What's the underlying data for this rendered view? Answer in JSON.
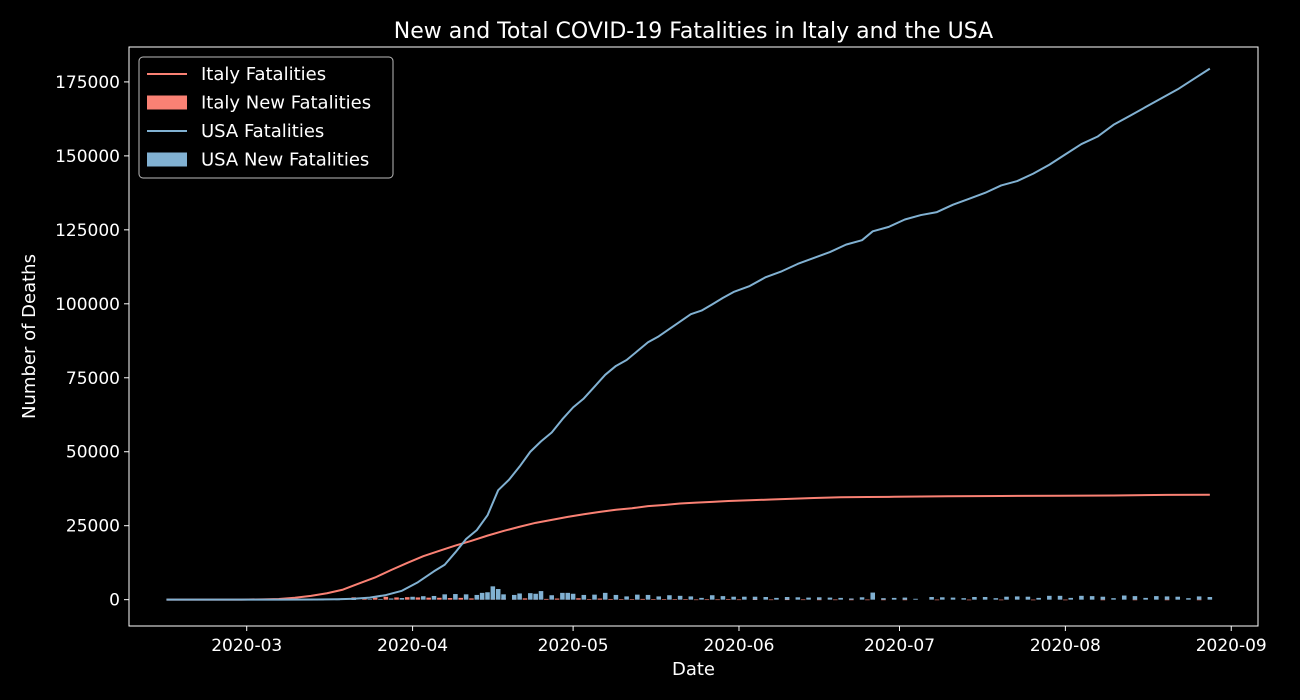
{
  "chart_data": {
    "type": "line",
    "title": "New and Total COVID-19 Fatalities in Italy and the USA",
    "xlabel": "Date",
    "ylabel": "Number of Deaths",
    "xlim": [
      "2020-02-08",
      "2020-09-06"
    ],
    "ylim": [
      -8900,
      186800
    ],
    "x_ticks": [
      "2020-03",
      "2020-04",
      "2020-05",
      "2020-06",
      "2020-07",
      "2020-08",
      "2020-09"
    ],
    "y_ticks": [
      0,
      25000,
      50000,
      75000,
      100000,
      125000,
      150000,
      175000
    ],
    "legend_position": "top-left",
    "grid": false,
    "colors": {
      "italy": "#fa8174",
      "usa": "#81b1d2",
      "background": "#000000",
      "foreground": "#ffffff"
    },
    "series": [
      {
        "name": "Italy Fatalities",
        "kind": "line",
        "color": "#fa8174",
        "points": [
          [
            "2020-02-15",
            0
          ],
          [
            "2020-02-22",
            2
          ],
          [
            "2020-02-29",
            29
          ],
          [
            "2020-03-04",
            107
          ],
          [
            "2020-03-07",
            233
          ],
          [
            "2020-03-10",
            631
          ],
          [
            "2020-03-13",
            1266
          ],
          [
            "2020-03-16",
            2158
          ],
          [
            "2020-03-19",
            3405
          ],
          [
            "2020-03-22",
            5476
          ],
          [
            "2020-03-25",
            7503
          ],
          [
            "2020-03-28",
            10023
          ],
          [
            "2020-03-31",
            12428
          ],
          [
            "2020-04-03",
            14681
          ],
          [
            "2020-04-06",
            16523
          ],
          [
            "2020-04-09",
            18279
          ],
          [
            "2020-04-12",
            19899
          ],
          [
            "2020-04-15",
            21645
          ],
          [
            "2020-04-18",
            23227
          ],
          [
            "2020-04-21",
            24648
          ],
          [
            "2020-04-24",
            25969
          ],
          [
            "2020-04-27",
            26977
          ],
          [
            "2020-04-30",
            27967
          ],
          [
            "2020-05-03",
            28884
          ],
          [
            "2020-05-06",
            29684
          ],
          [
            "2020-05-09",
            30395
          ],
          [
            "2020-05-12",
            30911
          ],
          [
            "2020-05-15",
            31610
          ],
          [
            "2020-05-18",
            32007
          ],
          [
            "2020-05-21",
            32486
          ],
          [
            "2020-05-24",
            32785
          ],
          [
            "2020-05-27",
            33072
          ],
          [
            "2020-05-30",
            33340
          ],
          [
            "2020-06-03",
            33601
          ],
          [
            "2020-06-07",
            33846
          ],
          [
            "2020-06-11",
            34114
          ],
          [
            "2020-06-15",
            34371
          ],
          [
            "2020-06-20",
            34634
          ],
          [
            "2020-06-25",
            34708
          ],
          [
            "2020-06-30",
            34767
          ],
          [
            "2020-07-10",
            34938
          ],
          [
            "2020-07-20",
            35058
          ],
          [
            "2020-07-31",
            35141
          ],
          [
            "2020-08-10",
            35209
          ],
          [
            "2020-08-20",
            35418
          ],
          [
            "2020-08-28",
            35472
          ]
        ]
      },
      {
        "name": "Italy New Fatalities",
        "kind": "bar",
        "color": "#fa8174",
        "points": [
          [
            "2020-03-03",
            20
          ],
          [
            "2020-03-05",
            40
          ],
          [
            "2020-03-07",
            40
          ],
          [
            "2020-03-09",
            100
          ],
          [
            "2020-03-11",
            190
          ],
          [
            "2020-03-13",
            250
          ],
          [
            "2020-03-15",
            370
          ],
          [
            "2020-03-17",
            350
          ],
          [
            "2020-03-19",
            430
          ],
          [
            "2020-03-21",
            790
          ],
          [
            "2020-03-23",
            600
          ],
          [
            "2020-03-25",
            680
          ],
          [
            "2020-03-27",
            970
          ],
          [
            "2020-03-29",
            760
          ],
          [
            "2020-03-31",
            840
          ],
          [
            "2020-04-02",
            760
          ],
          [
            "2020-04-04",
            680
          ],
          [
            "2020-04-06",
            640
          ],
          [
            "2020-04-08",
            540
          ],
          [
            "2020-04-10",
            610
          ],
          [
            "2020-04-12",
            430
          ],
          [
            "2020-04-14",
            600
          ],
          [
            "2020-04-16",
            520
          ],
          [
            "2020-04-18",
            480
          ],
          [
            "2020-04-20",
            450
          ],
          [
            "2020-04-22",
            440
          ],
          [
            "2020-04-24",
            420
          ],
          [
            "2020-04-26",
            260
          ],
          [
            "2020-04-28",
            380
          ],
          [
            "2020-04-30",
            280
          ],
          [
            "2020-05-02",
            470
          ],
          [
            "2020-05-04",
            190
          ],
          [
            "2020-05-06",
            370
          ],
          [
            "2020-05-08",
            240
          ],
          [
            "2020-05-10",
            160
          ],
          [
            "2020-05-12",
            180
          ],
          [
            "2020-05-14",
            260
          ],
          [
            "2020-05-16",
            150
          ],
          [
            "2020-05-18",
            100
          ],
          [
            "2020-05-20",
            160
          ],
          [
            "2020-05-22",
            130
          ],
          [
            "2020-05-24",
            50
          ],
          [
            "2020-05-26",
            80
          ],
          [
            "2020-05-28",
            70
          ],
          [
            "2020-05-30",
            110
          ],
          [
            "2020-06-01",
            60
          ],
          [
            "2020-06-04",
            90
          ],
          [
            "2020-06-07",
            50
          ],
          [
            "2020-06-10",
            70
          ],
          [
            "2020-06-13",
            60
          ],
          [
            "2020-06-16",
            30
          ],
          [
            "2020-06-19",
            40
          ],
          [
            "2020-06-22",
            20
          ],
          [
            "2020-06-25",
            30
          ],
          [
            "2020-06-28",
            20
          ],
          [
            "2020-07-02",
            20
          ],
          [
            "2020-07-08",
            20
          ],
          [
            "2020-07-14",
            10
          ],
          [
            "2020-07-20",
            10
          ],
          [
            "2020-07-26",
            10
          ],
          [
            "2020-08-01",
            10
          ],
          [
            "2020-08-08",
            10
          ],
          [
            "2020-08-14",
            10
          ],
          [
            "2020-08-20",
            10
          ],
          [
            "2020-08-26",
            10
          ]
        ]
      },
      {
        "name": "USA Fatalities",
        "kind": "line",
        "color": "#81b1d2",
        "points": [
          [
            "2020-02-15",
            0
          ],
          [
            "2020-02-29",
            1
          ],
          [
            "2020-03-07",
            17
          ],
          [
            "2020-03-14",
            58
          ],
          [
            "2020-03-18",
            150
          ],
          [
            "2020-03-21",
            320
          ],
          [
            "2020-03-24",
            700
          ],
          [
            "2020-03-27",
            1550
          ],
          [
            "2020-03-30",
            3000
          ],
          [
            "2020-04-02",
            5900
          ],
          [
            "2020-04-05",
            9600
          ],
          [
            "2020-04-07",
            11800
          ],
          [
            "2020-04-09",
            16000
          ],
          [
            "2020-04-11",
            20500
          ],
          [
            "2020-04-13",
            23500
          ],
          [
            "2020-04-15",
            28500
          ],
          [
            "2020-04-17",
            37000
          ],
          [
            "2020-04-19",
            40500
          ],
          [
            "2020-04-21",
            45000
          ],
          [
            "2020-04-23",
            50000
          ],
          [
            "2020-04-25",
            53500
          ],
          [
            "2020-04-27",
            56500
          ],
          [
            "2020-04-29",
            61000
          ],
          [
            "2020-05-01",
            65000
          ],
          [
            "2020-05-03",
            68000
          ],
          [
            "2020-05-05",
            72000
          ],
          [
            "2020-05-07",
            76000
          ],
          [
            "2020-05-09",
            79000
          ],
          [
            "2020-05-11",
            81000
          ],
          [
            "2020-05-13",
            84000
          ],
          [
            "2020-05-15",
            87000
          ],
          [
            "2020-05-17",
            89000
          ],
          [
            "2020-05-19",
            91500
          ],
          [
            "2020-05-21",
            94000
          ],
          [
            "2020-05-23",
            96500
          ],
          [
            "2020-05-25",
            97700
          ],
          [
            "2020-05-27",
            99800
          ],
          [
            "2020-05-29",
            102000
          ],
          [
            "2020-05-31",
            104000
          ],
          [
            "2020-06-03",
            106000
          ],
          [
            "2020-06-06",
            109000
          ],
          [
            "2020-06-09",
            111000
          ],
          [
            "2020-06-12",
            113500
          ],
          [
            "2020-06-15",
            115500
          ],
          [
            "2020-06-18",
            117500
          ],
          [
            "2020-06-21",
            120000
          ],
          [
            "2020-06-24",
            121500
          ],
          [
            "2020-06-26",
            124500
          ],
          [
            "2020-06-29",
            126000
          ],
          [
            "2020-07-02",
            128500
          ],
          [
            "2020-07-05",
            130000
          ],
          [
            "2020-07-08",
            131000
          ],
          [
            "2020-07-11",
            133500
          ],
          [
            "2020-07-14",
            135500
          ],
          [
            "2020-07-17",
            137500
          ],
          [
            "2020-07-20",
            140000
          ],
          [
            "2020-07-23",
            141500
          ],
          [
            "2020-07-26",
            144000
          ],
          [
            "2020-07-29",
            147000
          ],
          [
            "2020-08-01",
            150500
          ],
          [
            "2020-08-04",
            154000
          ],
          [
            "2020-08-07",
            156500
          ],
          [
            "2020-08-10",
            160500
          ],
          [
            "2020-08-13",
            163500
          ],
          [
            "2020-08-16",
            166500
          ],
          [
            "2020-08-19",
            169500
          ],
          [
            "2020-08-22",
            172500
          ],
          [
            "2020-08-25",
            176000
          ],
          [
            "2020-08-28",
            179500
          ]
        ]
      },
      {
        "name": "USA New Fatalities",
        "kind": "bar",
        "color": "#81b1d2",
        "points": [
          [
            "2020-03-15",
            10
          ],
          [
            "2020-03-18",
            40
          ],
          [
            "2020-03-21",
            90
          ],
          [
            "2020-03-24",
            150
          ],
          [
            "2020-03-26",
            240
          ],
          [
            "2020-03-28",
            400
          ],
          [
            "2020-03-30",
            550
          ],
          [
            "2020-04-01",
            980
          ],
          [
            "2020-04-03",
            1170
          ],
          [
            "2020-04-05",
            1250
          ],
          [
            "2020-04-07",
            1800
          ],
          [
            "2020-04-09",
            1900
          ],
          [
            "2020-04-11",
            1800
          ],
          [
            "2020-04-13",
            1600
          ],
          [
            "2020-04-14",
            2300
          ],
          [
            "2020-04-15",
            2500
          ],
          [
            "2020-04-16",
            4500
          ],
          [
            "2020-04-17",
            3600
          ],
          [
            "2020-04-18",
            1800
          ],
          [
            "2020-04-20",
            1600
          ],
          [
            "2020-04-21",
            2100
          ],
          [
            "2020-04-23",
            2200
          ],
          [
            "2020-04-24",
            2000
          ],
          [
            "2020-04-25",
            2900
          ],
          [
            "2020-04-27",
            1500
          ],
          [
            "2020-04-29",
            2300
          ],
          [
            "2020-04-30",
            2300
          ],
          [
            "2020-05-01",
            2000
          ],
          [
            "2020-05-03",
            1600
          ],
          [
            "2020-05-05",
            1700
          ],
          [
            "2020-05-07",
            2300
          ],
          [
            "2020-05-09",
            1600
          ],
          [
            "2020-05-11",
            1100
          ],
          [
            "2020-05-13",
            1700
          ],
          [
            "2020-05-15",
            1600
          ],
          [
            "2020-05-17",
            1100
          ],
          [
            "2020-05-19",
            1500
          ],
          [
            "2020-05-21",
            1300
          ],
          [
            "2020-05-23",
            1100
          ],
          [
            "2020-05-25",
            600
          ],
          [
            "2020-05-27",
            1500
          ],
          [
            "2020-05-29",
            1200
          ],
          [
            "2020-05-31",
            1000
          ],
          [
            "2020-06-02",
            1000
          ],
          [
            "2020-06-04",
            1000
          ],
          [
            "2020-06-06",
            900
          ],
          [
            "2020-06-08",
            600
          ],
          [
            "2020-06-10",
            900
          ],
          [
            "2020-06-12",
            800
          ],
          [
            "2020-06-14",
            700
          ],
          [
            "2020-06-16",
            800
          ],
          [
            "2020-06-18",
            700
          ],
          [
            "2020-06-20",
            600
          ],
          [
            "2020-06-22",
            400
          ],
          [
            "2020-06-24",
            800
          ],
          [
            "2020-06-26",
            2400
          ],
          [
            "2020-06-28",
            500
          ],
          [
            "2020-06-30",
            600
          ],
          [
            "2020-07-02",
            700
          ],
          [
            "2020-07-04",
            300
          ],
          [
            "2020-07-07",
            900
          ],
          [
            "2020-07-09",
            800
          ],
          [
            "2020-07-11",
            700
          ],
          [
            "2020-07-13",
            500
          ],
          [
            "2020-07-15",
            900
          ],
          [
            "2020-07-17",
            900
          ],
          [
            "2020-07-19",
            500
          ],
          [
            "2020-07-21",
            1000
          ],
          [
            "2020-07-23",
            1100
          ],
          [
            "2020-07-25",
            1000
          ],
          [
            "2020-07-27",
            600
          ],
          [
            "2020-07-29",
            1300
          ],
          [
            "2020-07-31",
            1300
          ],
          [
            "2020-08-02",
            600
          ],
          [
            "2020-08-04",
            1300
          ],
          [
            "2020-08-06",
            1200
          ],
          [
            "2020-08-08",
            1000
          ],
          [
            "2020-08-10",
            500
          ],
          [
            "2020-08-12",
            1400
          ],
          [
            "2020-08-14",
            1200
          ],
          [
            "2020-08-16",
            600
          ],
          [
            "2020-08-18",
            1200
          ],
          [
            "2020-08-20",
            1100
          ],
          [
            "2020-08-22",
            1000
          ],
          [
            "2020-08-24",
            500
          ],
          [
            "2020-08-26",
            1100
          ],
          [
            "2020-08-28",
            900
          ]
        ]
      }
    ]
  }
}
